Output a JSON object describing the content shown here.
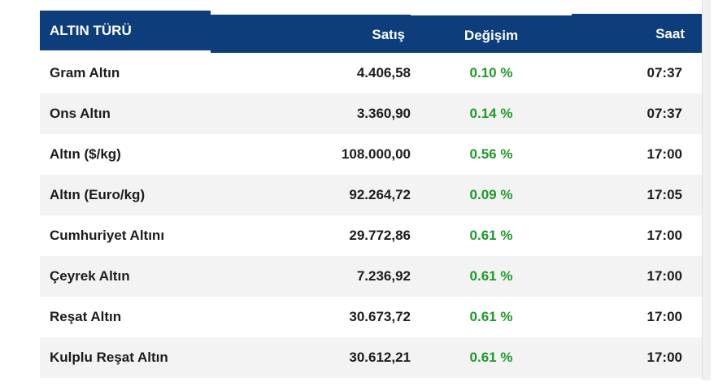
{
  "header": {
    "type": "ALTIN TÜRÜ",
    "sell": "Satış",
    "change": "Değişim",
    "time": "Saat"
  },
  "rows": [
    {
      "name": "Gram Altın",
      "price": "4.406,58",
      "change": "0.10 %",
      "time": "07:37"
    },
    {
      "name": "Ons Altın",
      "price": "3.360,90",
      "change": "0.14 %",
      "time": "07:37"
    },
    {
      "name": "Altın ($/kg)",
      "price": "108.000,00",
      "change": "0.56 %",
      "time": "17:00"
    },
    {
      "name": "Altın (Euro/kg)",
      "price": "92.264,72",
      "change": "0.09 %",
      "time": "17:05"
    },
    {
      "name": "Cumhuriyet Altını",
      "price": "29.772,86",
      "change": "0.61 %",
      "time": "17:00"
    },
    {
      "name": "Çeyrek Altın",
      "price": "7.236,92",
      "change": "0.61 %",
      "time": "17:00"
    },
    {
      "name": "Reşat Altın",
      "price": "30.673,72",
      "change": "0.61 %",
      "time": "17:00"
    },
    {
      "name": "Kulplu Reşat Altın",
      "price": "30.612,21",
      "change": "0.61 %",
      "time": "17:00"
    }
  ],
  "colors": {
    "header_bg": "#0d3d7a",
    "positive_change": "#1f9a2a",
    "row_alt_bg": "#f3f3f3"
  }
}
